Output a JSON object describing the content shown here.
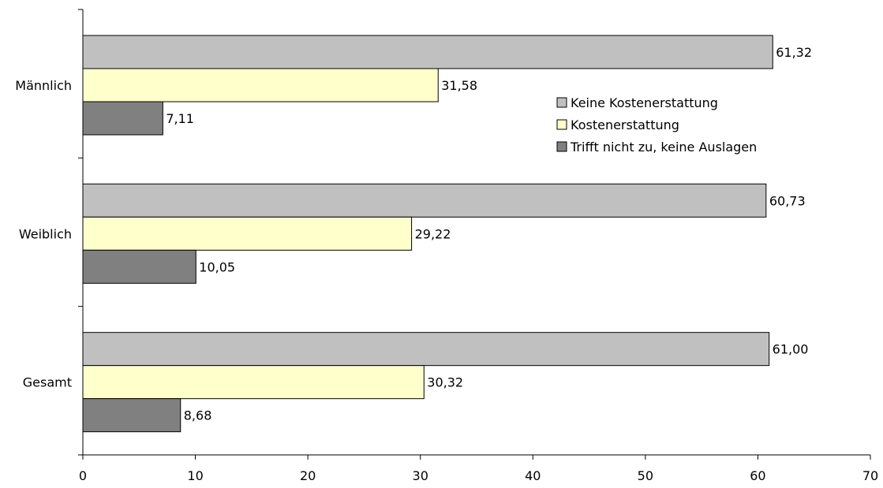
{
  "chart_data": {
    "type": "bar",
    "orientation": "horizontal",
    "categories": [
      "Männlich",
      "Weiblich",
      "Gesamt"
    ],
    "series": [
      {
        "name": "Keine Kostenerstattung",
        "color": "#c0c0c0",
        "values": [
          61.32,
          60.73,
          61.0
        ],
        "labels": [
          "61,32",
          "60,73",
          "61,00"
        ]
      },
      {
        "name": "Kostenerstattung",
        "color": "#ffffcc",
        "values": [
          31.58,
          29.22,
          30.32
        ],
        "labels": [
          "31,58",
          "29,22",
          "30,32"
        ]
      },
      {
        "name": "Trifft nicht zu, keine Auslagen",
        "color": "#808080",
        "values": [
          7.11,
          10.05,
          8.68
        ],
        "labels": [
          "7,11",
          "10,05",
          "8,68"
        ]
      }
    ],
    "xlim": [
      0,
      70
    ],
    "xticks": [
      0,
      10,
      20,
      30,
      40,
      50,
      60,
      70
    ],
    "grid": false,
    "legend_position": "right"
  }
}
